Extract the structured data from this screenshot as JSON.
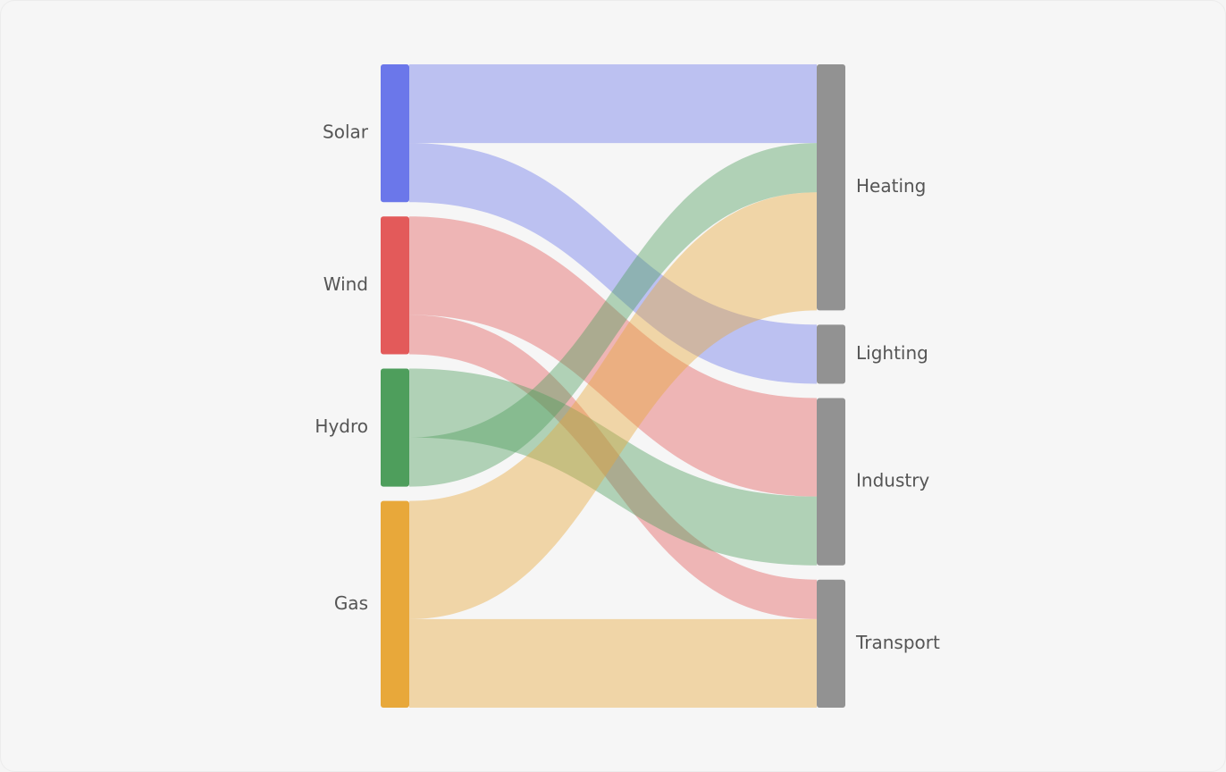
{
  "chart_data": {
    "type": "sankey",
    "nodes": [
      {
        "name": "Solar",
        "color": "#6b77ea"
      },
      {
        "name": "Wind",
        "color": "#e35a5a"
      },
      {
        "name": "Hydro",
        "color": "#4e9e5c"
      },
      {
        "name": "Gas",
        "color": "#e8a83a"
      },
      {
        "name": "Heating",
        "color": "#929292"
      },
      {
        "name": "Lighting",
        "color": "#929292"
      },
      {
        "name": "Industry",
        "color": "#929292"
      },
      {
        "name": "Transport",
        "color": "#929292"
      }
    ],
    "links": [
      {
        "source": "Solar",
        "target": "Heating",
        "value": 40
      },
      {
        "source": "Solar",
        "target": "Lighting",
        "value": 30
      },
      {
        "source": "Wind",
        "target": "Industry",
        "value": 50
      },
      {
        "source": "Wind",
        "target": "Transport",
        "value": 20
      },
      {
        "source": "Hydro",
        "target": "Industry",
        "value": 35
      },
      {
        "source": "Hydro",
        "target": "Heating",
        "value": 25
      },
      {
        "source": "Gas",
        "target": "Heating",
        "value": 60
      },
      {
        "source": "Gas",
        "target": "Transport",
        "value": 45
      }
    ]
  }
}
